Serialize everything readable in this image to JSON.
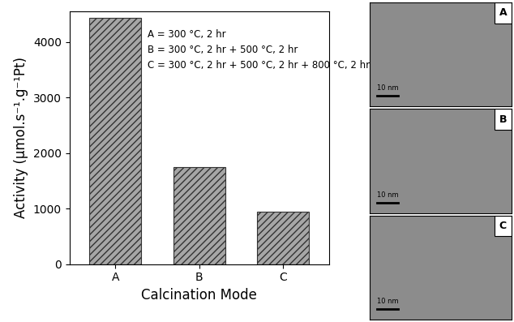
{
  "chart_data": {
    "type": "bar",
    "x_label": "Calcination Mode",
    "y_label": "Activity (μmol.s⁻¹.g⁻¹Pt)",
    "categories": [
      "A",
      "B",
      "C"
    ],
    "values": [
      4430,
      1750,
      935
    ],
    "color": "#a6a6a6",
    "ylim": [
      0,
      4550
    ],
    "yticks": [
      0,
      1000,
      2000,
      3000,
      4000
    ],
    "annotations": [
      "A = 300 °C, 2 hr",
      "B = 300 °C, 2 hr + 500 °C, 2 hr",
      "C = 300 °C, 2 hr + 500 °C, 2 hr + 800 °C, 2 hr"
    ],
    "image_panels": [
      {
        "label": "A",
        "scale_bar": "10 nm"
      },
      {
        "label": "B",
        "scale_bar": "10 nm"
      },
      {
        "label": "C",
        "scale_bar": "10 nm"
      }
    ]
  }
}
